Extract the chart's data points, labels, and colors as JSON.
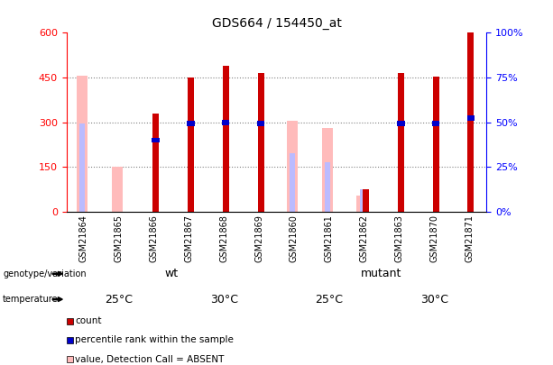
{
  "title": "GDS664 / 154450_at",
  "samples": [
    "GSM21864",
    "GSM21865",
    "GSM21866",
    "GSM21867",
    "GSM21868",
    "GSM21869",
    "GSM21860",
    "GSM21861",
    "GSM21862",
    "GSM21863",
    "GSM21870",
    "GSM21871"
  ],
  "count_values": [
    0,
    0,
    320,
    440,
    480,
    455,
    0,
    0,
    75,
    455,
    445,
    595
  ],
  "count_present": [
    false,
    false,
    true,
    true,
    true,
    true,
    false,
    false,
    true,
    true,
    true,
    true
  ],
  "absent_value": [
    455,
    150,
    0,
    0,
    0,
    0,
    305,
    280,
    55,
    0,
    0,
    0
  ],
  "absent_rank": [
    295,
    0,
    0,
    0,
    0,
    0,
    195,
    165,
    75,
    0,
    0,
    0
  ],
  "percentile_present": [
    false,
    false,
    true,
    true,
    true,
    true,
    false,
    false,
    false,
    true,
    true,
    true
  ],
  "percentile_values": [
    0,
    0,
    240,
    295,
    300,
    295,
    0,
    0,
    0,
    295,
    295,
    315
  ],
  "absent_rank_present": [
    true,
    false,
    false,
    false,
    false,
    false,
    true,
    true,
    true,
    false,
    false,
    false
  ],
  "ylim_left": [
    0,
    600
  ],
  "ylim_right": [
    0,
    100
  ],
  "yticks_left": [
    0,
    150,
    300,
    450,
    600
  ],
  "yticks_right": [
    0,
    25,
    50,
    75,
    100
  ],
  "yticklabels_right": [
    "0%",
    "25%",
    "50%",
    "75%",
    "100%"
  ],
  "color_count": "#cc0000",
  "color_percentile": "#0000cc",
  "color_absent_value": "#ffbbbb",
  "color_absent_rank": "#bbbbff",
  "color_wt": "#aaffaa",
  "color_mutant": "#55ee55",
  "color_temp_light": "#ffaaff",
  "color_temp_dark": "#cc44cc"
}
